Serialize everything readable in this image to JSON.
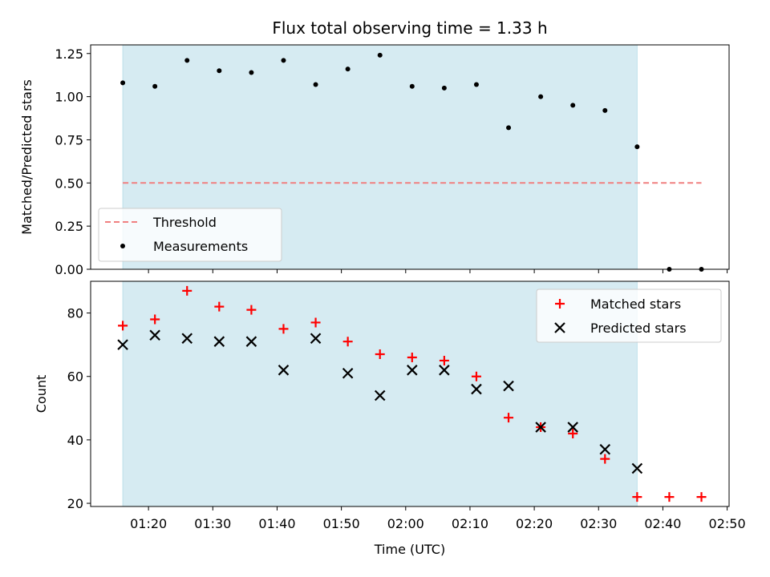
{
  "chart_data": {
    "type": "scatter",
    "title": "Flux total observing time = 1.33 h",
    "xlabel": "Time (UTC)",
    "x_ticks": [
      "01:20",
      "01:30",
      "01:40",
      "01:50",
      "02:00",
      "02:10",
      "02:20",
      "02:30",
      "02:40",
      "02:50"
    ],
    "x_times": [
      "01:16",
      "01:21",
      "01:26",
      "01:31",
      "01:36",
      "01:41",
      "01:46",
      "01:51",
      "01:56",
      "02:01",
      "02:06",
      "02:11",
      "02:16",
      "02:21",
      "02:26",
      "02:31",
      "02:36",
      "02:41",
      "02:46"
    ],
    "shaded_span": [
      "01:16",
      "02:36"
    ],
    "shade_color": "#add8e6",
    "top": {
      "ylabel": "Matched/Predicted stars",
      "ylim": [
        0,
        1.3
      ],
      "y_ticks": [
        "0.00",
        "0.25",
        "0.50",
        "0.75",
        "1.00",
        "1.25"
      ],
      "threshold": {
        "name": "Threshold",
        "value": 0.5,
        "x_range": [
          "01:16",
          "02:46"
        ],
        "color": "#f08080"
      },
      "measurements": {
        "name": "Measurements",
        "values": [
          1.08,
          1.06,
          1.21,
          1.15,
          1.14,
          1.21,
          1.07,
          1.16,
          1.24,
          1.06,
          1.05,
          1.07,
          0.82,
          1.0,
          0.95,
          0.92,
          0.71,
          0.0,
          0.0
        ],
        "color": "#000000"
      },
      "legend_position": "lower-left"
    },
    "bottom": {
      "ylabel": "Count",
      "ylim": [
        19,
        90
      ],
      "y_ticks": [
        "20",
        "40",
        "60",
        "80"
      ],
      "series": [
        {
          "name": "Matched stars",
          "marker": "plus",
          "color": "#ff0000",
          "values": [
            76,
            78,
            87,
            82,
            81,
            75,
            77,
            71,
            67,
            66,
            65,
            60,
            47,
            44,
            42,
            34,
            22,
            22,
            22
          ]
        },
        {
          "name": "Predicted stars",
          "marker": "x",
          "color": "#000000",
          "values": [
            70,
            73,
            72,
            71,
            71,
            62,
            72,
            61,
            54,
            62,
            62,
            56,
            57,
            44,
            44,
            37,
            31,
            null,
            null
          ]
        }
      ],
      "legend_position": "top-right"
    }
  }
}
